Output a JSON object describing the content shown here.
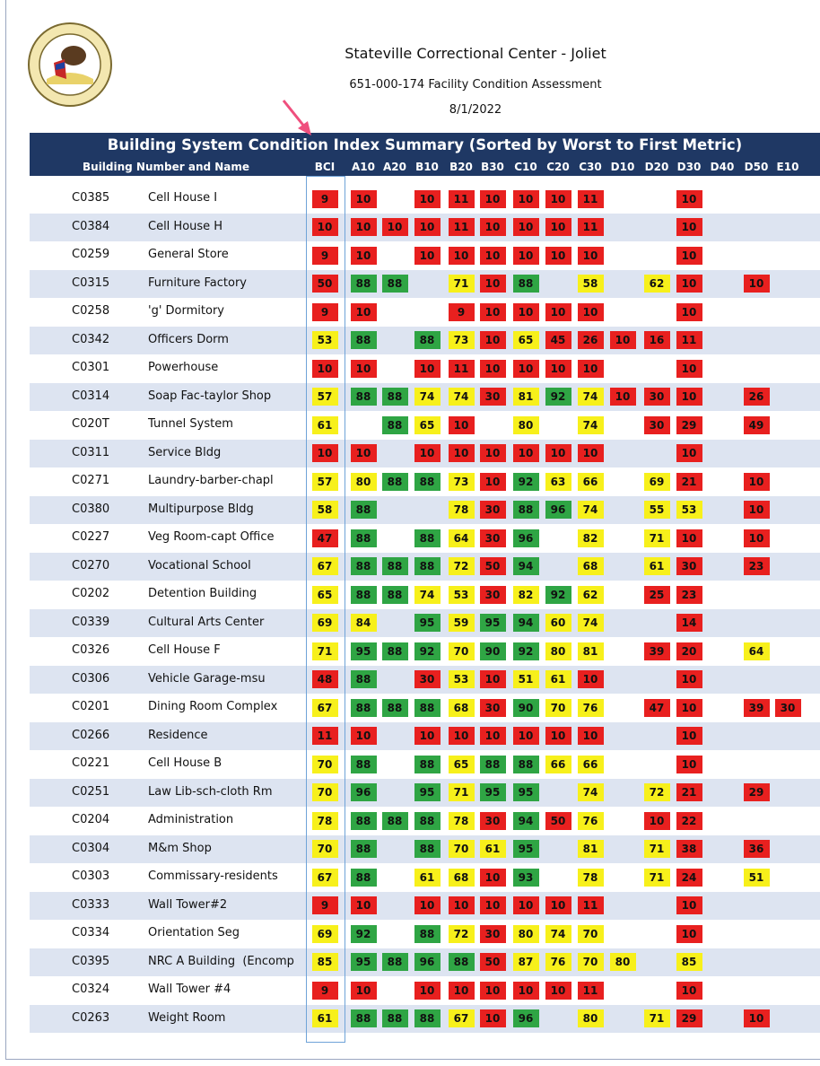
{
  "header": {
    "title": "Stateville Correctional Center - Joliet",
    "subtitle": "651-000-174 Facility Condition Assessment",
    "date": "8/1/2022"
  },
  "table": {
    "title": "Building System Condition Index Summary (Sorted by Worst to First Metric)",
    "name_header": "Building Number and Name",
    "columns": [
      "BCI",
      "A10",
      "A20",
      "B10",
      "B20",
      "B30",
      "C10",
      "C20",
      "C30",
      "D10",
      "D20",
      "D30",
      "D40",
      "D50",
      "E10"
    ],
    "rows": [
      {
        "id": "C0385",
        "name": "Cell House I",
        "values": [
          9,
          10,
          null,
          10,
          11,
          10,
          10,
          10,
          11,
          null,
          null,
          10,
          null,
          null,
          null
        ]
      },
      {
        "id": "C0384",
        "name": "Cell House H",
        "values": [
          10,
          10,
          10,
          10,
          11,
          10,
          10,
          10,
          11,
          null,
          null,
          10,
          null,
          null,
          null
        ]
      },
      {
        "id": "C0259",
        "name": "General Store",
        "values": [
          9,
          10,
          null,
          10,
          10,
          10,
          10,
          10,
          10,
          null,
          null,
          10,
          null,
          null,
          null
        ]
      },
      {
        "id": "C0315",
        "name": "Furniture Factory",
        "values": [
          50,
          88,
          88,
          null,
          71,
          10,
          88,
          null,
          58,
          null,
          62,
          10,
          null,
          10,
          null
        ]
      },
      {
        "id": "C0258",
        "name": "'g' Dormitory",
        "values": [
          9,
          10,
          null,
          null,
          9,
          10,
          10,
          10,
          10,
          null,
          null,
          10,
          null,
          null,
          null
        ]
      },
      {
        "id": "C0342",
        "name": "Officers Dorm",
        "values": [
          53,
          88,
          null,
          88,
          73,
          10,
          65,
          45,
          26,
          10,
          16,
          11,
          null,
          null,
          null
        ]
      },
      {
        "id": "C0301",
        "name": "Powerhouse",
        "values": [
          10,
          10,
          null,
          10,
          11,
          10,
          10,
          10,
          10,
          null,
          null,
          10,
          null,
          null,
          null
        ]
      },
      {
        "id": "C0314",
        "name": "Soap Fac-taylor Shop",
        "values": [
          57,
          88,
          88,
          74,
          74,
          30,
          81,
          92,
          74,
          10,
          30,
          10,
          null,
          26,
          null
        ]
      },
      {
        "id": "C020T",
        "name": "Tunnel System",
        "values": [
          61,
          null,
          88,
          65,
          10,
          null,
          80,
          null,
          74,
          null,
          30,
          29,
          null,
          49,
          null
        ]
      },
      {
        "id": "C0311",
        "name": "Service Bldg",
        "values": [
          10,
          10,
          null,
          10,
          10,
          10,
          10,
          10,
          10,
          null,
          null,
          10,
          null,
          null,
          null
        ]
      },
      {
        "id": "C0271",
        "name": "Laundry-barber-chapl",
        "values": [
          57,
          80,
          88,
          88,
          73,
          10,
          92,
          63,
          66,
          null,
          69,
          21,
          null,
          10,
          null
        ]
      },
      {
        "id": "C0380",
        "name": "Multipurpose Bldg",
        "values": [
          58,
          88,
          null,
          null,
          78,
          30,
          88,
          96,
          74,
          null,
          55,
          53,
          null,
          10,
          null
        ]
      },
      {
        "id": "C0227",
        "name": "Veg Room-capt Office",
        "values": [
          47,
          88,
          null,
          88,
          64,
          30,
          96,
          null,
          82,
          null,
          71,
          10,
          null,
          10,
          null
        ]
      },
      {
        "id": "C0270",
        "name": "Vocational School",
        "values": [
          67,
          88,
          88,
          88,
          72,
          50,
          94,
          null,
          68,
          null,
          61,
          30,
          null,
          23,
          null
        ]
      },
      {
        "id": "C0202",
        "name": "Detention Building",
        "values": [
          65,
          88,
          88,
          74,
          53,
          30,
          82,
          92,
          62,
          null,
          25,
          23,
          null,
          null,
          null
        ]
      },
      {
        "id": "C0339",
        "name": "Cultural Arts Center",
        "values": [
          69,
          84,
          null,
          95,
          59,
          95,
          94,
          60,
          74,
          null,
          null,
          14,
          null,
          null,
          null
        ]
      },
      {
        "id": "C0326",
        "name": "Cell House F",
        "values": [
          71,
          95,
          88,
          92,
          70,
          90,
          92,
          80,
          81,
          null,
          39,
          20,
          null,
          64,
          null
        ]
      },
      {
        "id": "C0306",
        "name": "Vehicle Garage-msu",
        "values": [
          48,
          88,
          null,
          30,
          53,
          10,
          51,
          61,
          10,
          null,
          null,
          10,
          null,
          null,
          null
        ]
      },
      {
        "id": "C0201",
        "name": "Dining Room Complex",
        "values": [
          67,
          88,
          88,
          88,
          68,
          30,
          90,
          70,
          76,
          null,
          47,
          10,
          null,
          39,
          30
        ]
      },
      {
        "id": "C0266",
        "name": "Residence",
        "values": [
          11,
          10,
          null,
          10,
          10,
          10,
          10,
          10,
          10,
          null,
          null,
          10,
          null,
          null,
          null
        ]
      },
      {
        "id": "C0221",
        "name": "Cell House B",
        "values": [
          70,
          88,
          null,
          88,
          65,
          88,
          88,
          66,
          66,
          null,
          null,
          10,
          null,
          null,
          null
        ]
      },
      {
        "id": "C0251",
        "name": "Law Lib-sch-cloth Rm",
        "values": [
          70,
          96,
          null,
          95,
          71,
          95,
          95,
          null,
          74,
          null,
          72,
          21,
          null,
          29,
          null
        ]
      },
      {
        "id": "C0204",
        "name": "Administration",
        "values": [
          78,
          88,
          88,
          88,
          78,
          30,
          94,
          50,
          76,
          null,
          10,
          22,
          null,
          null,
          null
        ]
      },
      {
        "id": "C0304",
        "name": "M&m Shop",
        "values": [
          70,
          88,
          null,
          88,
          70,
          61,
          95,
          null,
          81,
          null,
          71,
          38,
          null,
          36,
          null
        ]
      },
      {
        "id": "C0303",
        "name": "Commissary-residents",
        "values": [
          67,
          88,
          null,
          61,
          68,
          10,
          93,
          null,
          78,
          null,
          71,
          24,
          null,
          51,
          null
        ]
      },
      {
        "id": "C0333",
        "name": "Wall Tower#2",
        "values": [
          9,
          10,
          null,
          10,
          10,
          10,
          10,
          10,
          11,
          null,
          null,
          10,
          null,
          null,
          null
        ]
      },
      {
        "id": "C0334",
        "name": "Orientation Seg",
        "values": [
          69,
          92,
          null,
          88,
          72,
          30,
          80,
          74,
          70,
          null,
          null,
          10,
          null,
          null,
          null
        ]
      },
      {
        "id": "C0395",
        "name": "NRC A Building  (Encomp",
        "values": [
          85,
          95,
          88,
          96,
          88,
          50,
          87,
          76,
          70,
          80,
          null,
          85,
          null,
          null,
          null
        ]
      },
      {
        "id": "C0324",
        "name": "Wall Tower #4",
        "values": [
          9,
          10,
          null,
          10,
          10,
          10,
          10,
          10,
          11,
          null,
          null,
          10,
          null,
          null,
          null
        ]
      },
      {
        "id": "C0263",
        "name": "Weight Room",
        "values": [
          61,
          88,
          88,
          88,
          67,
          10,
          96,
          null,
          80,
          null,
          71,
          29,
          null,
          10,
          null
        ]
      }
    ]
  }
}
